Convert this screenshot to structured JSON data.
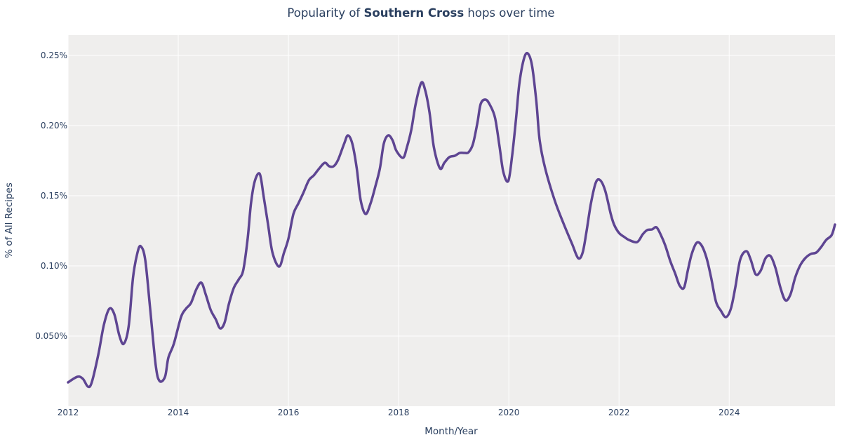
{
  "title": {
    "prefix": "Popularity of ",
    "bold": "Southern Cross",
    "suffix": " hops over time"
  },
  "chart_data": {
    "type": "line",
    "title": "Popularity of Southern Cross hops over time",
    "xlabel": "Month/Year",
    "ylabel": "% of All Recipes",
    "xlim": [
      2012,
      2025.92
    ],
    "ylim": [
      0,
      0.2645
    ],
    "xticks": [
      2012,
      2014,
      2016,
      2018,
      2020,
      2022,
      2024
    ],
    "xtick_labels": [
      "2012",
      "2014",
      "2016",
      "2018",
      "2020",
      "2022",
      "2024"
    ],
    "yticks": [
      0.05,
      0.1,
      0.15,
      0.2,
      0.25
    ],
    "ytick_labels": [
      "0.050%",
      "0.10%",
      "0.15%",
      "0.20%",
      "0.25%"
    ],
    "grid": true,
    "colors": {
      "line": "#5e4592",
      "plot_bg": "#efeeed",
      "grid": "#ffffff"
    },
    "series": [
      {
        "points": [
          [
            2012.0,
            0.017
          ],
          [
            2012.17,
            0.021
          ],
          [
            2012.27,
            0.0195
          ],
          [
            2012.36,
            0.014
          ],
          [
            2012.43,
            0.017
          ],
          [
            2012.55,
            0.037
          ],
          [
            2012.65,
            0.058
          ],
          [
            2012.75,
            0.0695
          ],
          [
            2012.84,
            0.0655
          ],
          [
            2012.93,
            0.0505
          ],
          [
            2013.01,
            0.0445
          ],
          [
            2013.1,
            0.057
          ],
          [
            2013.18,
            0.092
          ],
          [
            2013.26,
            0.1095
          ],
          [
            2013.32,
            0.114
          ],
          [
            2013.4,
            0.1045
          ],
          [
            2013.49,
            0.0695
          ],
          [
            2013.59,
            0.0295
          ],
          [
            2013.66,
            0.018
          ],
          [
            2013.76,
            0.021
          ],
          [
            2013.82,
            0.0345
          ],
          [
            2013.92,
            0.0445
          ],
          [
            2014.05,
            0.0635
          ],
          [
            2014.14,
            0.0695
          ],
          [
            2014.23,
            0.0735
          ],
          [
            2014.33,
            0.0835
          ],
          [
            2014.42,
            0.088
          ],
          [
            2014.5,
            0.0795
          ],
          [
            2014.59,
            0.0685
          ],
          [
            2014.68,
            0.062
          ],
          [
            2014.76,
            0.0555
          ],
          [
            2014.84,
            0.0595
          ],
          [
            2014.92,
            0.073
          ],
          [
            2015.01,
            0.0845
          ],
          [
            2015.1,
            0.0905
          ],
          [
            2015.18,
            0.097
          ],
          [
            2015.26,
            0.1195
          ],
          [
            2015.32,
            0.1445
          ],
          [
            2015.39,
            0.1605
          ],
          [
            2015.48,
            0.1655
          ],
          [
            2015.55,
            0.1495
          ],
          [
            2015.63,
            0.1295
          ],
          [
            2015.71,
            0.1095
          ],
          [
            2015.83,
            0.0995
          ],
          [
            2015.92,
            0.1095
          ],
          [
            2016.0,
            0.1195
          ],
          [
            2016.09,
            0.137
          ],
          [
            2016.18,
            0.1445
          ],
          [
            2016.27,
            0.152
          ],
          [
            2016.37,
            0.161
          ],
          [
            2016.46,
            0.1645
          ],
          [
            2016.56,
            0.1695
          ],
          [
            2016.66,
            0.1735
          ],
          [
            2016.74,
            0.171
          ],
          [
            2016.82,
            0.171
          ],
          [
            2016.9,
            0.1755
          ],
          [
            2017.01,
            0.187
          ],
          [
            2017.08,
            0.193
          ],
          [
            2017.16,
            0.187
          ],
          [
            2017.24,
            0.1695
          ],
          [
            2017.31,
            0.147
          ],
          [
            2017.4,
            0.137
          ],
          [
            2017.49,
            0.1445
          ],
          [
            2017.58,
            0.157
          ],
          [
            2017.66,
            0.1695
          ],
          [
            2017.73,
            0.187
          ],
          [
            2017.81,
            0.193
          ],
          [
            2017.89,
            0.1895
          ],
          [
            2017.96,
            0.182
          ],
          [
            2018.08,
            0.177
          ],
          [
            2018.15,
            0.1845
          ],
          [
            2018.23,
            0.197
          ],
          [
            2018.31,
            0.2155
          ],
          [
            2018.41,
            0.2305
          ],
          [
            2018.48,
            0.2255
          ],
          [
            2018.56,
            0.2095
          ],
          [
            2018.64,
            0.1845
          ],
          [
            2018.75,
            0.1695
          ],
          [
            2018.83,
            0.1735
          ],
          [
            2018.92,
            0.1775
          ],
          [
            2019.02,
            0.1785
          ],
          [
            2019.11,
            0.1805
          ],
          [
            2019.2,
            0.1805
          ],
          [
            2019.27,
            0.181
          ],
          [
            2019.35,
            0.187
          ],
          [
            2019.43,
            0.202
          ],
          [
            2019.49,
            0.2155
          ],
          [
            2019.58,
            0.2185
          ],
          [
            2019.66,
            0.2145
          ],
          [
            2019.75,
            0.2055
          ],
          [
            2019.83,
            0.1855
          ],
          [
            2019.9,
            0.167
          ],
          [
            2019.99,
            0.1605
          ],
          [
            2020.06,
            0.1785
          ],
          [
            2020.13,
            0.2045
          ],
          [
            2020.19,
            0.2295
          ],
          [
            2020.27,
            0.247
          ],
          [
            2020.34,
            0.2515
          ],
          [
            2020.42,
            0.243
          ],
          [
            2020.5,
            0.217
          ],
          [
            2020.56,
            0.1895
          ],
          [
            2020.66,
            0.1695
          ],
          [
            2020.83,
            0.147
          ],
          [
            2020.99,
            0.1305
          ],
          [
            2021.15,
            0.1155
          ],
          [
            2021.26,
            0.1055
          ],
          [
            2021.34,
            0.1095
          ],
          [
            2021.41,
            0.1245
          ],
          [
            2021.49,
            0.1445
          ],
          [
            2021.58,
            0.1595
          ],
          [
            2021.66,
            0.161
          ],
          [
            2021.75,
            0.1535
          ],
          [
            2021.85,
            0.137
          ],
          [
            2021.91,
            0.1295
          ],
          [
            2022.0,
            0.1235
          ],
          [
            2022.1,
            0.1205
          ],
          [
            2022.18,
            0.1185
          ],
          [
            2022.33,
            0.117
          ],
          [
            2022.43,
            0.1225
          ],
          [
            2022.51,
            0.1255
          ],
          [
            2022.6,
            0.126
          ],
          [
            2022.68,
            0.1275
          ],
          [
            2022.76,
            0.122
          ],
          [
            2022.84,
            0.1145
          ],
          [
            2022.93,
            0.1035
          ],
          [
            2023.02,
            0.0945
          ],
          [
            2023.1,
            0.086
          ],
          [
            2023.18,
            0.0845
          ],
          [
            2023.25,
            0.097
          ],
          [
            2023.32,
            0.1085
          ],
          [
            2023.41,
            0.1165
          ],
          [
            2023.5,
            0.1145
          ],
          [
            2023.59,
            0.1055
          ],
          [
            2023.67,
            0.092
          ],
          [
            2023.76,
            0.0745
          ],
          [
            2023.85,
            0.068
          ],
          [
            2023.94,
            0.0635
          ],
          [
            2024.03,
            0.0695
          ],
          [
            2024.11,
            0.0845
          ],
          [
            2024.2,
            0.1045
          ],
          [
            2024.31,
            0.1105
          ],
          [
            2024.39,
            0.1045
          ],
          [
            2024.48,
            0.094
          ],
          [
            2024.57,
            0.0965
          ],
          [
            2024.66,
            0.1055
          ],
          [
            2024.75,
            0.107
          ],
          [
            2024.84,
            0.0985
          ],
          [
            2024.93,
            0.0845
          ],
          [
            2025.02,
            0.0755
          ],
          [
            2025.11,
            0.0795
          ],
          [
            2025.2,
            0.092
          ],
          [
            2025.29,
            0.1005
          ],
          [
            2025.38,
            0.1055
          ],
          [
            2025.48,
            0.1085
          ],
          [
            2025.58,
            0.1095
          ],
          [
            2025.67,
            0.1135
          ],
          [
            2025.76,
            0.1185
          ],
          [
            2025.86,
            0.122
          ],
          [
            2025.92,
            0.1295
          ]
        ]
      }
    ]
  }
}
